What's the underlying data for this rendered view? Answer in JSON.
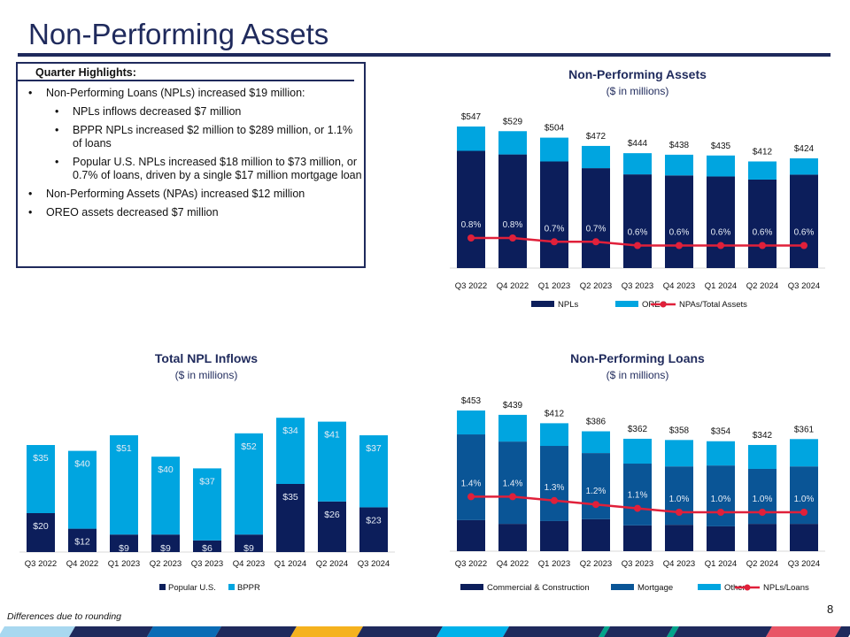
{
  "header": {
    "title": "Non-Performing Assets"
  },
  "highlights": {
    "heading": "Quarter Highlights:",
    "items": [
      {
        "text": "Non-Performing Loans (NPLs) increased $19 million:",
        "level": 1
      },
      {
        "text": "NPLs inflows decreased $7 million",
        "level": 2
      },
      {
        "text": "BPPR NPLs increased $2 million to $289 million, or 1.1% of loans",
        "level": 2
      },
      {
        "text": "Popular U.S. NPLs increased $18 million to $73 million, or 0.7% of loans, driven by a single $17 million mortgage loan",
        "level": 2
      },
      {
        "text": "Non-Performing Assets (NPAs) increased $12 million",
        "level": 1
      },
      {
        "text": "OREO assets decreased $7 million",
        "level": 1
      }
    ]
  },
  "footer": {
    "note": "Differences due to rounding",
    "page": "8"
  },
  "colors": {
    "navy": "#1f2a5c",
    "dark": "#0c1e5b",
    "mid": "#0a5596",
    "light": "#00a5e0",
    "red": "#e0203a"
  },
  "chart_data": [
    {
      "id": "npa",
      "type": "bar",
      "stacked": true,
      "title": "Non-Performing Assets",
      "subtitle": "($ in millions)",
      "categories": [
        "Q3 2022",
        "Q4 2022",
        "Q1 2023",
        "Q2 2023",
        "Q3 2023",
        "Q4 2023",
        "Q1 2024",
        "Q2 2024",
        "Q3 2024"
      ],
      "series": [
        {
          "name": "NPLs",
          "values": [
            453,
            439,
            412,
            386,
            362,
            358,
            354,
            342,
            361
          ],
          "color": "#0c1e5b"
        },
        {
          "name": "OREO",
          "values": [
            94,
            90,
            92,
            86,
            82,
            80,
            81,
            70,
            63
          ],
          "color": "#00a5e0"
        }
      ],
      "totals": [
        "$547",
        "$529",
        "$504",
        "$472",
        "$444",
        "$438",
        "$435",
        "$412",
        "$424"
      ],
      "line": {
        "name": "NPAs/Total Assets",
        "values": [
          0.8,
          0.8,
          0.7,
          0.7,
          0.6,
          0.6,
          0.6,
          0.6,
          0.6
        ],
        "labels": [
          "0.8%",
          "0.8%",
          "0.7%",
          "0.7%",
          "0.6%",
          "0.6%",
          "0.6%",
          "0.6%",
          "0.6%"
        ],
        "color": "#e0203a"
      }
    },
    {
      "id": "inflows",
      "type": "bar",
      "stacked": true,
      "title": "Total NPL Inflows",
      "subtitle": "($ in millions)",
      "categories": [
        "Q3 2022",
        "Q4 2022",
        "Q1 2023",
        "Q2 2023",
        "Q3 2023",
        "Q4 2023",
        "Q1 2024",
        "Q2 2024",
        "Q3 2024"
      ],
      "series": [
        {
          "name": "Popular U.S.",
          "values": [
            20,
            12,
            9,
            9,
            6,
            9,
            35,
            26,
            23
          ],
          "labels": [
            "$20",
            "$12",
            "$9",
            "$9",
            "$6",
            "$9",
            "$35",
            "$26",
            "$23"
          ],
          "color": "#0c1e5b"
        },
        {
          "name": "BPPR",
          "values": [
            35,
            40,
            51,
            40,
            37,
            52,
            34,
            41,
            37
          ],
          "labels": [
            "$35",
            "$40",
            "$51",
            "$40",
            "$37",
            "$52",
            "$34",
            "$41",
            "$37"
          ],
          "color": "#00a5e0"
        }
      ]
    },
    {
      "id": "npl",
      "type": "bar",
      "stacked": true,
      "title": "Non-Performing Loans",
      "subtitle": "($ in millions)",
      "categories": [
        "Q3 2022",
        "Q4 2022",
        "Q1 2023",
        "Q2 2023",
        "Q3 2023",
        "Q4 2023",
        "Q1 2024",
        "Q2 2024",
        "Q3 2024"
      ],
      "series": [
        {
          "name": "Commercial & Construction",
          "values": [
            100,
            88,
            97,
            103,
            83,
            85,
            80,
            88,
            88
          ],
          "color": "#0c1e5b"
        },
        {
          "name": "Mortgage",
          "values": [
            276,
            265,
            242,
            213,
            199,
            188,
            196,
            177,
            185
          ],
          "color": "#0a5596"
        },
        {
          "name": "Other",
          "values": [
            77,
            86,
            73,
            70,
            80,
            85,
            78,
            77,
            88
          ],
          "color": "#00a5e0"
        }
      ],
      "totals": [
        "$453",
        "$439",
        "$412",
        "$386",
        "$362",
        "$358",
        "$354",
        "$342",
        "$361"
      ],
      "line": {
        "name": "NPLs/Loans",
        "values": [
          1.4,
          1.4,
          1.3,
          1.2,
          1.1,
          1.0,
          1.0,
          1.0,
          1.0
        ],
        "labels": [
          "1.4%",
          "1.4%",
          "1.3%",
          "1.2%",
          "1.1%",
          "1.0%",
          "1.0%",
          "1.0%",
          "1.0%"
        ],
        "color": "#e0203a"
      }
    }
  ]
}
